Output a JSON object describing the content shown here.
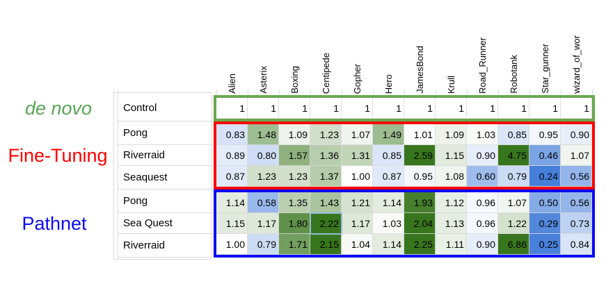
{
  "chart_data": {
    "type": "heatmap",
    "title": "",
    "columns": [
      "Alien",
      "Asterix",
      "Boxing",
      "Centipede",
      "Gopher",
      "Hero",
      "JamesBond",
      "Krull",
      "Road_Runner",
      "Robotank",
      "Star_gunner",
      "wizard_of_wor"
    ],
    "groups": [
      {
        "label": "de novo",
        "label_color": "#5aa357",
        "outline_color": "#6aa84f",
        "rows": [
          {
            "label": "Control",
            "values": [
              "1",
              "1",
              "1",
              "1",
              "1",
              "1",
              "1",
              "1",
              "1",
              "1",
              "1",
              "1"
            ]
          }
        ]
      },
      {
        "label": "Fine-Tuning",
        "label_color": "#fe0000",
        "outline_color": "#fe0000",
        "rows": [
          {
            "label": "Pong",
            "values": [
              "0.83",
              "1.48",
              "1.09",
              "1.23",
              "1.07",
              "1.49",
              "1.01",
              "1.09",
              "1.03",
              "0.85",
              "0.95",
              "0.90"
            ]
          },
          {
            "label": "Riverraid",
            "values": [
              "0.89",
              "0.80",
              "1.57",
              "1.36",
              "1.31",
              "0.85",
              "2.59",
              "1.15",
              "0.90",
              "4.75",
              "0.46",
              "1.07"
            ]
          },
          {
            "label": "Seaquest",
            "values": [
              "0.87",
              "1.23",
              "1.23",
              "1.37",
              "1.00",
              "0.87",
              "0.95",
              "1.08",
              "0.60",
              "0.79",
              "0.24",
              "0.56"
            ]
          }
        ]
      },
      {
        "label": "Pathnet",
        "label_color": "#0b0bf2",
        "outline_color": "#0b0bf2",
        "rows": [
          {
            "label": "Pong",
            "values": [
              "1.14",
              "0.58",
              "1.35",
              "1.43",
              "1.21",
              "1.14",
              "1.93",
              "1.12",
              "0.96",
              "1.07",
              "0.50",
              "0.56"
            ]
          },
          {
            "label": "Sea Quest",
            "values": [
              "1.15",
              "1.17",
              "1.80",
              "2.22",
              "1.17",
              "1.03",
              "2.04",
              "1.13",
              "0.96",
              "1.22",
              "0.29",
              "0.73"
            ]
          },
          {
            "label": "Riverraid",
            "values": [
              "1.00",
              "0.79",
              "1.71",
              "2.15",
              "1.04",
              "1.14",
              "2.25",
              "1.11",
              "0.90",
              "6.86",
              "0.25",
              "0.84"
            ]
          }
        ]
      }
    ],
    "color_scale": {
      "low_color": "#3c78d8",
      "mid_color": "#ffffff",
      "high_color": "#38761d",
      "mid_value": 1,
      "low_clip": 0.2,
      "high_clip": 2
    },
    "selected_cell": {
      "group": 2,
      "row": 1,
      "col": 3
    },
    "selection_color": "#95bcd8",
    "gridline_color": "#d9d9d9",
    "layout": {
      "legend": "none",
      "grid": "on"
    }
  }
}
